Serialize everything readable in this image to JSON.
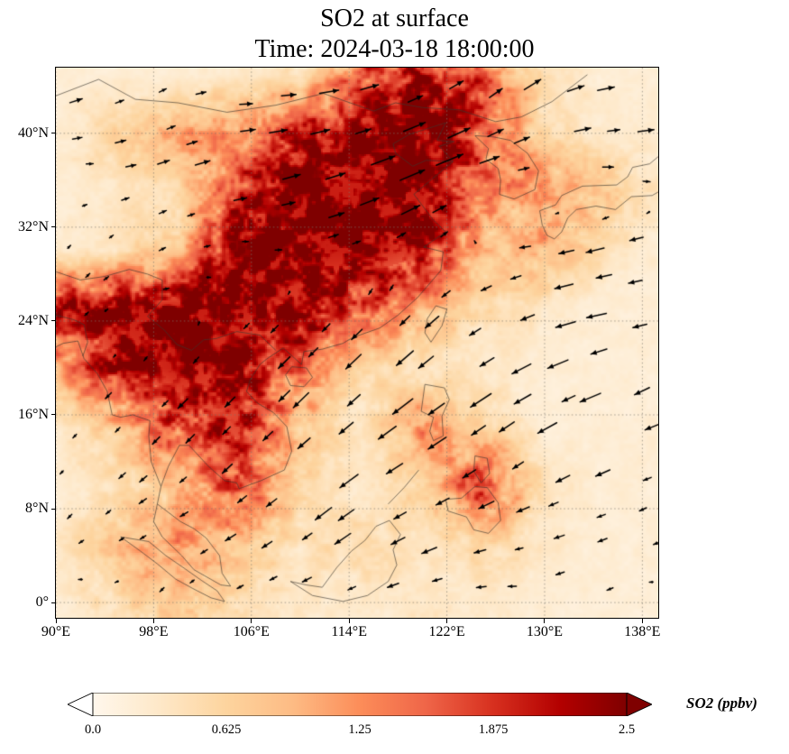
{
  "title": {
    "line1": "SO2 at surface",
    "line2": "Time: 2024-03-18 18:00:00"
  },
  "axes": {
    "x_ticks": [
      {
        "lon": 90,
        "label": "90°E"
      },
      {
        "lon": 98,
        "label": "98°E"
      },
      {
        "lon": 106,
        "label": "106°E"
      },
      {
        "lon": 114,
        "label": "114°E"
      },
      {
        "lon": 122,
        "label": "122°E"
      },
      {
        "lon": 130,
        "label": "130°E"
      },
      {
        "lon": 138,
        "label": "138°E"
      }
    ],
    "y_ticks": [
      {
        "lat": 40,
        "label": "40°N"
      },
      {
        "lat": 32,
        "label": "32°N"
      },
      {
        "lat": 24,
        "label": "24°N"
      },
      {
        "lat": 16,
        "label": "16°N"
      },
      {
        "lat": 8,
        "label": "8°N"
      },
      {
        "lat": 0,
        "label": "0°"
      }
    ]
  },
  "colorbar": {
    "label": "SO2 (ppbv)",
    "ticks": [
      "0.0",
      "0.625",
      "1.25",
      "1.875",
      "2.5"
    ],
    "min": 0.0,
    "max": 2.5,
    "colormap": "OrRd",
    "extend": "both",
    "stops": [
      "#fff7ec",
      "#fee8c8",
      "#fdd49e",
      "#fdbb84",
      "#fc8d59",
      "#ef6548",
      "#d7301f",
      "#b30000",
      "#7f0000"
    ],
    "under": "#ffffff",
    "over": "#7f0000",
    "outline": "#000000"
  },
  "chart_data": {
    "type": "heatmap",
    "title": "SO2 at surface",
    "subtitle": "Time: 2024-03-18 18:00:00",
    "variable": "SO2",
    "units": "ppbv",
    "colormap": "OrRd",
    "value_range": [
      0,
      2.5
    ],
    "lon_range": [
      90,
      139.3
    ],
    "lat_range": [
      -1.3,
      45.6
    ],
    "x_tick_labels": [
      "90°E",
      "98°E",
      "106°E",
      "114°E",
      "122°E",
      "130°E",
      "138°E"
    ],
    "y_tick_labels": [
      "0°",
      "8°N",
      "16°N",
      "24°N",
      "32°N",
      "40°N"
    ],
    "grid_style": "dotted",
    "grid": {
      "lons": [
        90,
        95,
        100,
        105,
        110,
        115,
        120,
        125,
        130,
        135,
        140
      ],
      "lats": [
        45,
        40,
        35,
        30,
        25,
        20,
        15,
        10,
        5,
        0
      ],
      "values": [
        [
          0.2,
          0.2,
          0.2,
          0.3,
          0.4,
          1.5,
          2.2,
          1.5,
          0.4,
          0.2,
          0.2
        ],
        [
          0.2,
          0.6,
          1.0,
          1.2,
          2.0,
          2.4,
          2.5,
          1.8,
          0.5,
          0.3,
          0.2
        ],
        [
          0.2,
          0.3,
          0.5,
          1.8,
          2.5,
          2.5,
          2.5,
          1.2,
          1.2,
          0.8,
          0.3
        ],
        [
          0.3,
          0.4,
          0.8,
          2.5,
          2.5,
          2.5,
          2.2,
          0.8,
          1.0,
          0.4,
          0.2
        ],
        [
          2.2,
          2.5,
          2.5,
          2.5,
          2.2,
          1.8,
          1.0,
          0.5,
          0.3,
          0.2,
          0.2
        ],
        [
          1.0,
          2.2,
          2.5,
          2.2,
          1.5,
          0.5,
          0.4,
          0.3,
          0.2,
          0.2,
          0.2
        ],
        [
          0.3,
          0.8,
          1.8,
          2.2,
          0.8,
          0.3,
          1.2,
          0.6,
          0.2,
          0.2,
          0.2
        ],
        [
          0.2,
          0.4,
          0.8,
          1.8,
          0.6,
          0.3,
          0.6,
          1.8,
          0.4,
          0.2,
          0.2
        ],
        [
          0.3,
          0.8,
          1.2,
          0.8,
          0.4,
          0.5,
          0.4,
          0.6,
          0.3,
          0.2,
          0.2
        ],
        [
          0.2,
          0.5,
          0.8,
          0.5,
          0.3,
          0.3,
          0.3,
          0.3,
          0.2,
          0.2,
          0.2
        ]
      ]
    },
    "wind_overlay": {
      "type": "quiver",
      "color": "#000000",
      "lons": [
        92,
        99,
        106,
        113,
        120,
        127,
        134,
        139
      ],
      "lats": [
        2,
        7,
        13,
        19,
        25,
        31,
        37,
        43
      ],
      "u": [
        [
          -0.5,
          -0.5,
          -1.0,
          -1.0,
          -1.5,
          -1.0,
          -1.0,
          -0.5
        ],
        [
          -0.5,
          -1.0,
          -1.5,
          -2.0,
          -2.0,
          -1.5,
          -1.5,
          -1.0
        ],
        [
          -0.5,
          -1.0,
          -1.5,
          -2.5,
          -2.5,
          -2.0,
          -2.0,
          -1.5
        ],
        [
          -0.5,
          -1.0,
          -1.5,
          -2.0,
          -2.5,
          -2.5,
          -2.5,
          -2.0
        ],
        [
          0.5,
          0.5,
          -0.5,
          -1.0,
          -1.5,
          -2.0,
          -2.5,
          -2.5
        ],
        [
          0.5,
          1.0,
          1.0,
          1.5,
          1.5,
          -1.0,
          -2.0,
          -2.0
        ],
        [
          1.0,
          1.5,
          2.0,
          3.0,
          3.5,
          2.0,
          1.5,
          2.0
        ],
        [
          1.5,
          1.0,
          2.0,
          2.5,
          2.0,
          2.0,
          2.5,
          2.0
        ]
      ],
      "v": [
        [
          0.0,
          -0.5,
          -0.5,
          -0.5,
          -0.5,
          0.0,
          -0.5,
          0.0
        ],
        [
          -0.5,
          -0.5,
          -1.0,
          -1.5,
          -1.0,
          -0.5,
          -0.5,
          -0.5
        ],
        [
          -0.5,
          -1.0,
          -1.5,
          -2.0,
          -1.5,
          -1.5,
          -1.0,
          -0.5
        ],
        [
          -0.5,
          -1.0,
          -1.5,
          -2.0,
          -2.0,
          -1.5,
          -1.0,
          -1.0
        ],
        [
          0.5,
          0.0,
          -0.5,
          -1.0,
          -1.5,
          -1.0,
          -0.5,
          -0.5
        ],
        [
          0.5,
          0.5,
          0.0,
          0.5,
          1.0,
          0.0,
          -0.5,
          -0.5
        ],
        [
          0.0,
          0.5,
          0.5,
          1.0,
          1.5,
          0.5,
          0.0,
          0.0
        ],
        [
          0.5,
          0.5,
          0.0,
          0.5,
          1.0,
          1.5,
          0.5,
          0.5
        ]
      ]
    },
    "coastlines": [
      [
        [
          121.9,
          40.9
        ],
        [
          121.2,
          39.4
        ],
        [
          122.6,
          39.3
        ],
        [
          121.4,
          38.9
        ],
        [
          122.5,
          37.6
        ],
        [
          120.3,
          37.7
        ],
        [
          119.2,
          37.2
        ],
        [
          117.8,
          38.3
        ],
        [
          117.6,
          39.1
        ],
        [
          118.9,
          39.9
        ],
        [
          121.9,
          40.9
        ]
      ],
      [
        [
          122.5,
          37.6
        ],
        [
          119.3,
          34.8
        ],
        [
          120.9,
          32.6
        ],
        [
          121.9,
          31.6
        ],
        [
          120.1,
          30.3
        ],
        [
          121.7,
          29.9
        ],
        [
          121.5,
          28.3
        ],
        [
          119.6,
          26.0
        ],
        [
          118.0,
          24.5
        ],
        [
          116.5,
          23.4
        ],
        [
          114.3,
          22.6
        ],
        [
          113.5,
          22.1
        ],
        [
          111.8,
          21.6
        ],
        [
          110.3,
          21.4
        ],
        [
          110.1,
          20.3
        ],
        [
          108.6,
          21.7
        ],
        [
          107.3,
          20.8
        ],
        [
          106.7,
          20.3
        ]
      ],
      [
        [
          106.7,
          20.3
        ],
        [
          105.9,
          19.0
        ],
        [
          105.6,
          18.0
        ],
        [
          106.5,
          17.0
        ],
        [
          107.8,
          16.2
        ],
        [
          108.9,
          15.0
        ],
        [
          109.3,
          12.9
        ],
        [
          108.7,
          11.3
        ],
        [
          106.8,
          10.4
        ],
        [
          105.0,
          9.7
        ],
        [
          104.8,
          10.2
        ],
        [
          103.8,
          10.4
        ],
        [
          102.5,
          11.6
        ],
        [
          100.9,
          13.4
        ],
        [
          100.1,
          13.4
        ],
        [
          99.2,
          11.6
        ],
        [
          98.6,
          9.9
        ],
        [
          98.3,
          8.4
        ],
        [
          100.2,
          6.9
        ],
        [
          101.3,
          6.3
        ],
        [
          102.3,
          5.5
        ],
        [
          103.4,
          4.0
        ],
        [
          103.6,
          2.5
        ],
        [
          104.3,
          1.4
        ],
        [
          103.5,
          1.5
        ],
        [
          101.3,
          2.8
        ],
        [
          100.3,
          4.0
        ],
        [
          98.7,
          5.6
        ],
        [
          98.0,
          6.9
        ],
        [
          98.3,
          8.4
        ]
      ],
      [
        [
          98.6,
          9.9
        ],
        [
          97.8,
          12.0
        ],
        [
          97.6,
          14.2
        ],
        [
          97.7,
          15.5
        ],
        [
          96.3,
          16.0
        ],
        [
          95.3,
          15.8
        ],
        [
          94.6,
          16.0
        ],
        [
          94.2,
          18.0
        ],
        [
          93.4,
          19.5
        ],
        [
          92.3,
          20.8
        ],
        [
          91.8,
          22.3
        ],
        [
          90.6,
          22.1
        ],
        [
          90.0,
          21.8
        ]
      ],
      [
        [
          95.3,
          5.6
        ],
        [
          96.9,
          4.4
        ],
        [
          98.3,
          3.3
        ],
        [
          99.8,
          2.0
        ],
        [
          101.2,
          1.2
        ],
        [
          102.7,
          0.4
        ],
        [
          103.8,
          0.1
        ],
        [
          103.2,
          1.0
        ],
        [
          101.9,
          1.9
        ],
        [
          100.4,
          3.0
        ],
        [
          99.0,
          4.0
        ],
        [
          97.6,
          5.2
        ],
        [
          95.3,
          5.6
        ]
      ],
      [
        [
          109.2,
          1.8
        ],
        [
          110.5,
          1.5
        ],
        [
          111.8,
          1.3
        ],
        [
          113.0,
          3.0
        ],
        [
          114.2,
          4.4
        ],
        [
          115.3,
          5.3
        ],
        [
          116.2,
          6.5
        ],
        [
          117.3,
          7.0
        ],
        [
          118.2,
          5.8
        ],
        [
          117.6,
          4.5
        ],
        [
          117.9,
          3.2
        ],
        [
          117.2,
          1.8
        ],
        [
          115.5,
          0.6
        ],
        [
          113.5,
          0.1
        ],
        [
          111.0,
          0.6
        ],
        [
          109.2,
          1.8
        ]
      ],
      [
        [
          121.1,
          25.3
        ],
        [
          122.0,
          25.0
        ],
        [
          121.6,
          23.6
        ],
        [
          120.7,
          22.2
        ],
        [
          120.2,
          23.0
        ],
        [
          120.4,
          24.2
        ],
        [
          121.1,
          25.3
        ]
      ],
      [
        [
          109.3,
          20.1
        ],
        [
          110.5,
          20.0
        ],
        [
          111.0,
          19.2
        ],
        [
          110.3,
          18.4
        ],
        [
          109.2,
          18.5
        ],
        [
          108.8,
          19.4
        ],
        [
          109.3,
          20.1
        ]
      ],
      [
        [
          124.3,
          39.8
        ],
        [
          125.4,
          38.7
        ],
        [
          125.2,
          37.8
        ],
        [
          126.2,
          37.0
        ],
        [
          126.4,
          36.0
        ],
        [
          126.3,
          34.8
        ],
        [
          127.5,
          34.4
        ],
        [
          129.2,
          35.2
        ],
        [
          129.5,
          36.8
        ],
        [
          128.6,
          38.3
        ],
        [
          127.2,
          39.4
        ],
        [
          125.8,
          39.7
        ],
        [
          124.3,
          39.8
        ]
      ],
      [
        [
          140.5,
          41.6
        ],
        [
          139.9,
          39.8
        ],
        [
          140.1,
          38.2
        ],
        [
          139.4,
          38.1
        ],
        [
          138.6,
          37.4
        ],
        [
          137.2,
          37.1
        ],
        [
          136.8,
          36.3
        ],
        [
          135.9,
          35.6
        ],
        [
          133.1,
          35.5
        ],
        [
          131.4,
          34.7
        ],
        [
          130.9,
          33.9
        ],
        [
          129.6,
          33.4
        ],
        [
          129.8,
          32.2
        ],
        [
          130.2,
          31.3
        ],
        [
          130.8,
          31.0
        ],
        [
          131.4,
          31.6
        ],
        [
          131.9,
          32.8
        ],
        [
          132.6,
          33.5
        ],
        [
          134.2,
          33.8
        ],
        [
          135.8,
          33.5
        ],
        [
          137.1,
          34.6
        ],
        [
          138.8,
          34.7
        ],
        [
          139.8,
          35.3
        ],
        [
          140.4,
          35.7
        ]
      ],
      [
        [
          120.2,
          18.6
        ],
        [
          121.8,
          18.3
        ],
        [
          122.2,
          17.3
        ],
        [
          121.6,
          15.9
        ],
        [
          121.7,
          14.2
        ],
        [
          120.9,
          13.8
        ],
        [
          120.6,
          14.6
        ],
        [
          120.9,
          15.8
        ],
        [
          119.9,
          16.3
        ],
        [
          120.2,
          18.6
        ]
      ],
      [
        [
          125.3,
          9.8
        ],
        [
          126.2,
          8.5
        ],
        [
          126.4,
          7.0
        ],
        [
          125.4,
          5.9
        ],
        [
          124.2,
          6.2
        ],
        [
          123.6,
          7.3
        ],
        [
          122.1,
          7.8
        ],
        [
          121.9,
          8.8
        ],
        [
          123.2,
          8.9
        ],
        [
          124.3,
          9.9
        ],
        [
          125.3,
          9.8
        ]
      ],
      [
        [
          117.2,
          8.4
        ],
        [
          118.5,
          9.8
        ],
        [
          119.7,
          11.3
        ]
      ],
      [
        [
          124.3,
          12.5
        ],
        [
          125.3,
          12.3
        ],
        [
          125.5,
          11.0
        ],
        [
          124.8,
          10.2
        ],
        [
          124.2,
          11.2
        ],
        [
          124.3,
          12.5
        ]
      ],
      [
        [
          90.0,
          43.2
        ],
        [
          93.5,
          44.6
        ],
        [
          96.5,
          42.9
        ],
        [
          100.0,
          42.6
        ],
        [
          104.0,
          41.8
        ],
        [
          108.0,
          42.4
        ],
        [
          111.9,
          43.4
        ],
        [
          116.0,
          41.9
        ],
        [
          117.8,
          42.6
        ],
        [
          120.0,
          42.2
        ],
        [
          123.0,
          42.0
        ],
        [
          126.0,
          41.0
        ],
        [
          128.1,
          41.4
        ],
        [
          130.6,
          42.7
        ],
        [
          133.5,
          45.0
        ]
      ],
      [
        [
          90.0,
          28.2
        ],
        [
          92.0,
          27.5
        ],
        [
          94.0,
          27.8
        ],
        [
          96.0,
          28.4
        ],
        [
          97.5,
          28.0
        ],
        [
          98.7,
          27.5
        ],
        [
          98.7,
          25.8
        ],
        [
          97.5,
          24.4
        ],
        [
          98.9,
          23.2
        ],
        [
          99.9,
          22.0
        ],
        [
          101.1,
          21.5
        ],
        [
          102.1,
          22.4
        ],
        [
          103.1,
          22.5
        ],
        [
          104.8,
          23.1
        ],
        [
          106.7,
          22.8
        ],
        [
          108.0,
          21.5
        ]
      ],
      [
        [
          90.0,
          24.5
        ],
        [
          91.5,
          24.1
        ],
        [
          92.3,
          23.7
        ],
        [
          92.6,
          22.2
        ],
        [
          92.2,
          21.0
        ]
      ]
    ]
  }
}
